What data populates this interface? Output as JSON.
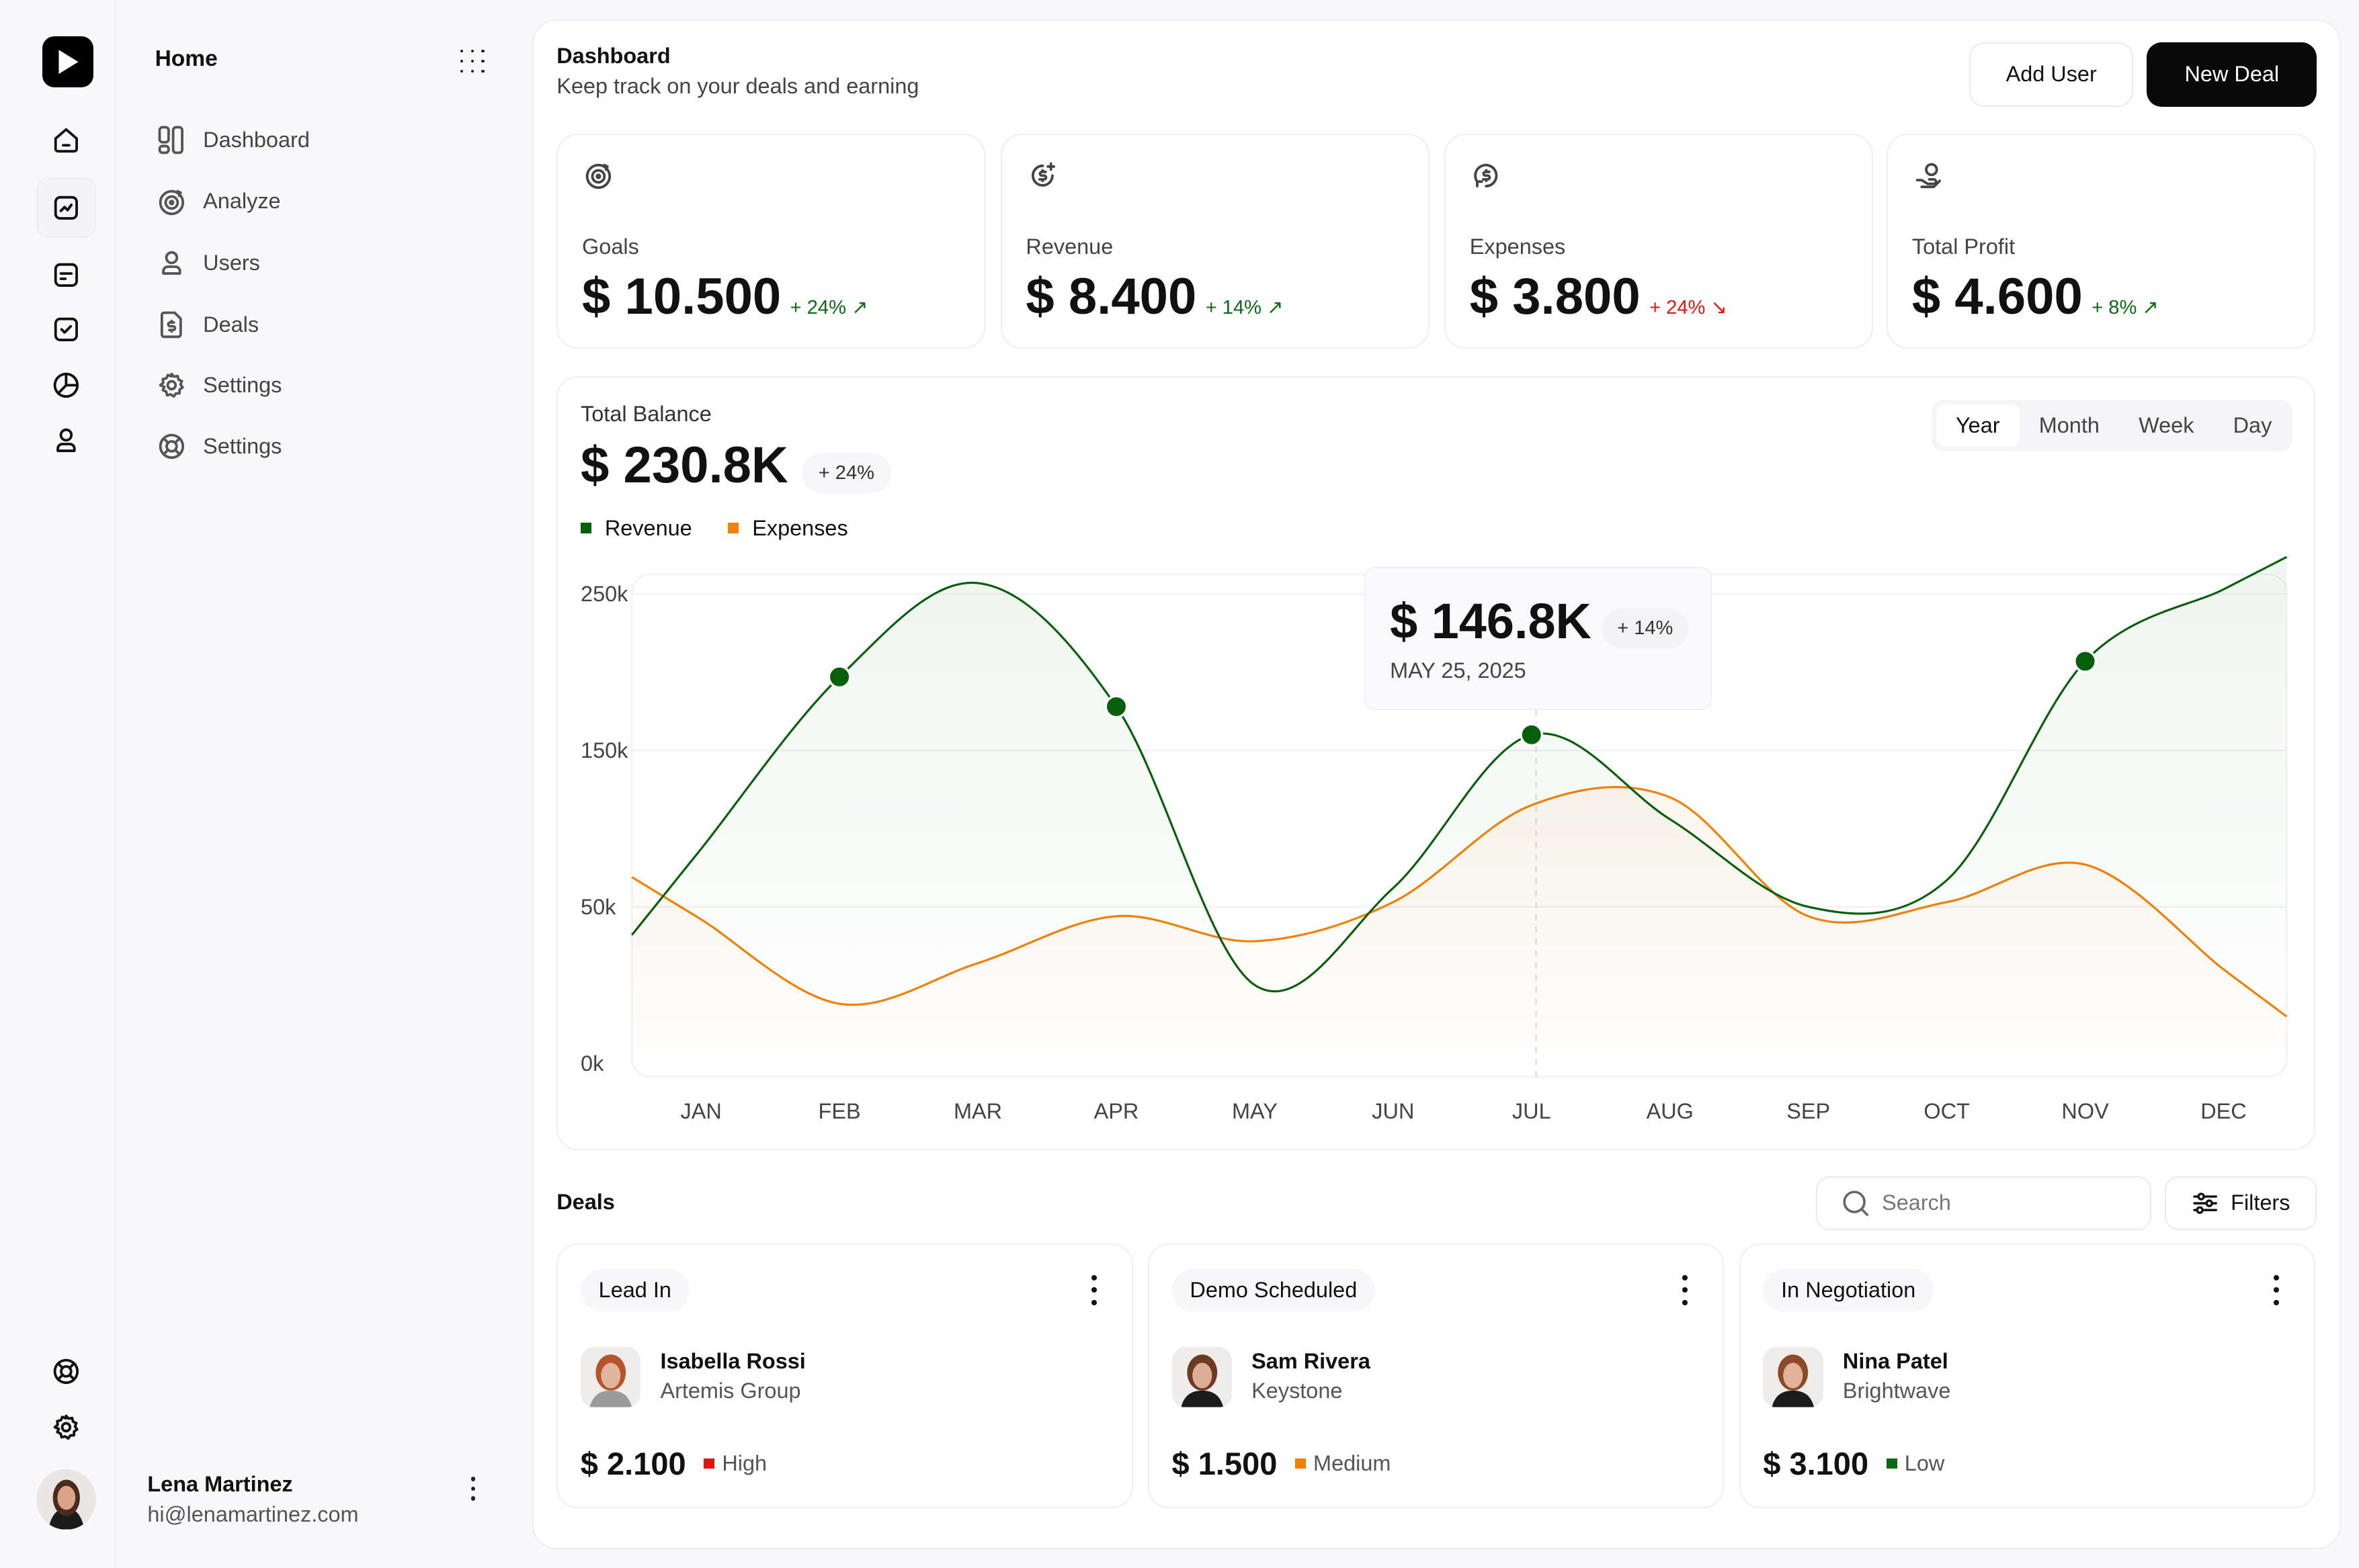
{
  "sidebar": {
    "title": "Home",
    "items": [
      {
        "label": "Dashboard",
        "icon": "layout-icon"
      },
      {
        "label": "Analyze",
        "icon": "target-icon"
      },
      {
        "label": "Users",
        "icon": "user-icon"
      },
      {
        "label": "Deals",
        "icon": "invoice-dollar-icon"
      },
      {
        "label": "Settings",
        "icon": "gear-icon"
      },
      {
        "label": "Settings",
        "icon": "lifebuoy-icon"
      }
    ],
    "user": {
      "name": "Lena Martinez",
      "email": "hi@lenamartinez.com"
    }
  },
  "rail": {
    "icons": [
      "home-icon",
      "chart-icon",
      "message-icon",
      "checkbox-icon",
      "pie-chart-icon",
      "user-icon",
      "lifebuoy-icon",
      "gear-icon"
    ],
    "active": "chart-icon"
  },
  "header": {
    "title": "Dashboard",
    "subtitle": "Keep track on your deals and earning",
    "add_user": "Add User",
    "new_deal": "New Deal"
  },
  "stats": [
    {
      "label": "Goals",
      "value": "$ 10.500",
      "delta": "+ 24%",
      "trend": "up",
      "icon": "target-icon"
    },
    {
      "label": "Revenue",
      "value": "$ 8.400",
      "delta": "+ 14%",
      "trend": "up",
      "icon": "dollar-plus-icon"
    },
    {
      "label": "Expenses",
      "value": "$ 3.800",
      "delta": "+ 24%",
      "trend": "down",
      "icon": "dollar-refresh-icon"
    },
    {
      "label": "Total Profit",
      "value": "$ 4.600",
      "delta": "+ 8%",
      "trend": "up",
      "icon": "hand-coin-icon"
    }
  ],
  "colors": {
    "up": "#0b6b12",
    "down": "#e0160e",
    "revenue": "#075e0b",
    "expenses": "#f57f00",
    "high": "#e0160e",
    "medium": "#f57f00",
    "low": "#0b6b12"
  },
  "balance": {
    "title": "Total Balance",
    "value": "$ 230.8K",
    "delta": "+ 24%",
    "tabs": [
      "Year",
      "Month",
      "Week",
      "Day"
    ],
    "active_tab": "Year",
    "tooltip": {
      "value": "$ 146.8K",
      "delta": "+ 14%",
      "date": "MAY 25, 2025"
    }
  },
  "chart_data": {
    "type": "line",
    "categories": [
      "JAN",
      "FEB",
      "MAR",
      "APR",
      "MAY",
      "JUN",
      "JUL",
      "AUG",
      "SEP",
      "OCT",
      "NOV",
      "DEC"
    ],
    "y_ticks": [
      "0k",
      "50k",
      "150k",
      "250k"
    ],
    "series": [
      {
        "name": "Revenue",
        "values": [
          87,
          197,
          257,
          178,
          25,
          62,
          160,
          106,
          50,
          67,
          207,
          253
        ]
      },
      {
        "name": "Expenses",
        "values": [
          46,
          19,
          32,
          47,
          39,
          53,
          115,
          120,
          47,
          53,
          77,
          30
        ]
      }
    ],
    "grid": true,
    "legend": "top-left",
    "highlight": "JUL"
  },
  "deals": {
    "title": "Deals",
    "search_placeholder": "Search",
    "filters": "Filters",
    "items": [
      {
        "stage": "Lead In",
        "name": "Isabella Rossi",
        "company": "Artemis Group",
        "amount": "$ 2.100",
        "priority": "High"
      },
      {
        "stage": "Demo Scheduled",
        "name": "Sam Rivera",
        "company": "Keystone",
        "amount": "$ 1.500",
        "priority": "Medium"
      },
      {
        "stage": "In Negotiation",
        "name": "Nina Patel",
        "company": "Brightwave",
        "amount": "$ 3.100",
        "priority": "Low"
      }
    ]
  }
}
